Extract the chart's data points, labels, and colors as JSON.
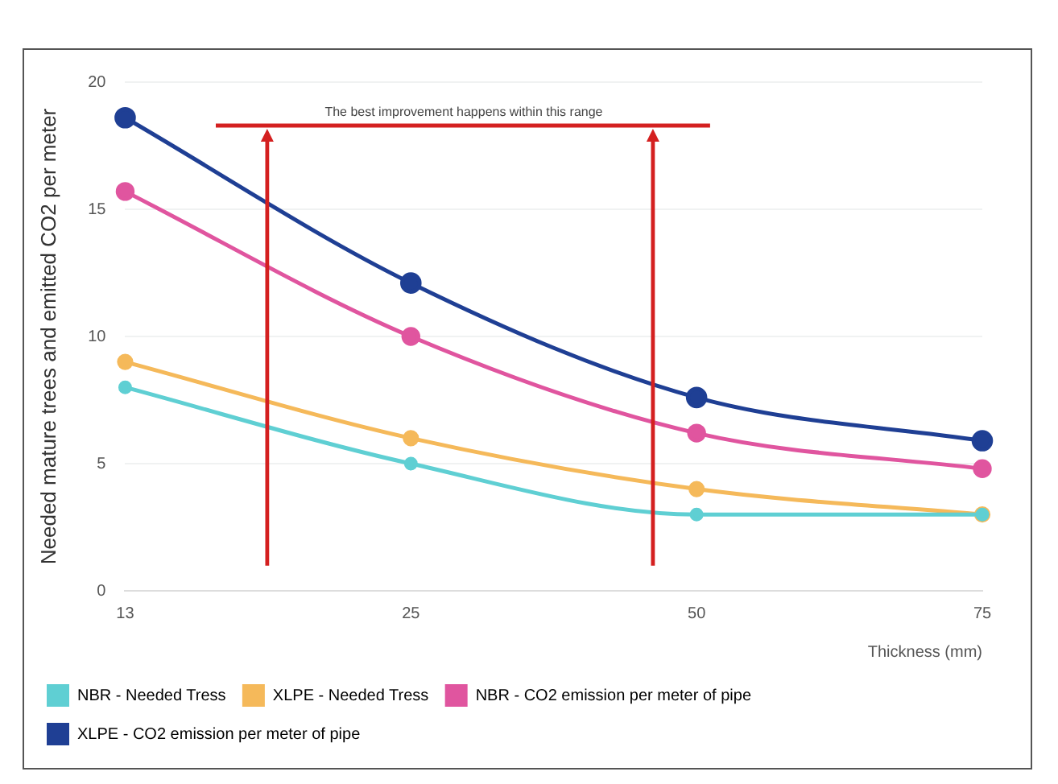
{
  "chart_data": {
    "type": "line",
    "xlabel": "Thickness (mm)",
    "ylabel": "Needed mature trees and emitted CO2 per meter",
    "categories": [
      "13",
      "25",
      "50",
      "75"
    ],
    "series": [
      {
        "name": "NBR - Needed Tress",
        "color": "#5fcfd3",
        "values": [
          8,
          5,
          3,
          3
        ]
      },
      {
        "name": "XLPE - Needed Tress",
        "color": "#f5b95a",
        "values": [
          9,
          6,
          4,
          3
        ]
      },
      {
        "name": "NBR - CO2 emission per meter of pipe",
        "color": "#e0559f",
        "values": [
          15.7,
          10,
          6.2,
          4.8
        ]
      },
      {
        "name": "XLPE - CO2 emission per meter of pipe",
        "color": "#1f3f94",
        "values": [
          18.6,
          12.1,
          7.6,
          5.9
        ]
      }
    ],
    "ylim": [
      0,
      20
    ],
    "yticks": [
      0,
      5,
      10,
      15,
      20
    ],
    "grid": "y",
    "legend": "bottom",
    "marker": "circle",
    "line_style": "solid",
    "annotations": [
      "The best improvement happens within this range"
    ]
  }
}
